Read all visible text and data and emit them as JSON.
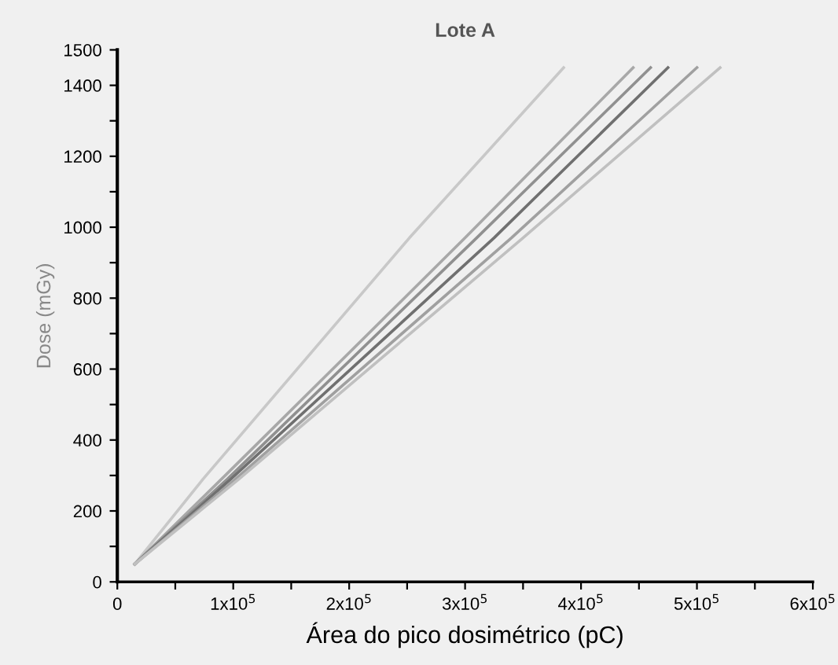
{
  "chart_data": {
    "type": "line",
    "title": "Lote A",
    "xlabel": "Área do pico dosimétrico (pC)",
    "ylabel": "Dose (mGy)",
    "xlim": [
      0,
      600000
    ],
    "ylim": [
      0,
      1500
    ],
    "xticks": [
      {
        "value": 0,
        "label": "0"
      },
      {
        "value": 50000,
        "label": null
      },
      {
        "value": 100000,
        "label": "1x10$^{5}$"
      },
      {
        "value": 150000,
        "label": null
      },
      {
        "value": 200000,
        "label": "2x10$^{5}$"
      },
      {
        "value": 250000,
        "label": null
      },
      {
        "value": 300000,
        "label": "3x10$^{5}$"
      },
      {
        "value": 350000,
        "label": null
      },
      {
        "value": 400000,
        "label": "4x10$^{5}$"
      },
      {
        "value": 450000,
        "label": null
      },
      {
        "value": 500000,
        "label": "5x10$^{5}$"
      },
      {
        "value": 550000,
        "label": null
      },
      {
        "value": 600000,
        "label": "6x10$^{5}$"
      }
    ],
    "yticks": [
      0,
      {
        "value": 100,
        "label": null
      },
      200,
      {
        "value": 300,
        "label": null
      },
      400,
      {
        "value": 500,
        "label": null
      },
      600,
      {
        "value": 700,
        "label": null
      },
      800,
      {
        "value": 900,
        "label": null
      },
      1000,
      {
        "value": 1100,
        "label": null
      },
      1200,
      {
        "value": 1300,
        "label": null
      },
      1400,
      1500
    ],
    "grid": false,
    "marker": "none",
    "line_style": "solid",
    "series": [
      {
        "color": "#c8c8c8",
        "x": [
          15000,
          74000,
          252000,
          385000
        ],
        "values": [
          50,
          290,
          970,
          1450
        ]
      },
      {
        "color": "#a8a8a8",
        "x": [
          15000,
          90000,
          300000,
          445000
        ],
        "values": [
          50,
          290,
          970,
          1450
        ]
      },
      {
        "color": "#909090",
        "x": [
          15000,
          95000,
          310000,
          460000
        ],
        "values": [
          50,
          290,
          970,
          1450
        ]
      },
      {
        "color": "#707070",
        "x": [
          15000,
          98000,
          325000,
          475000
        ],
        "values": [
          50,
          290,
          970,
          1450
        ]
      },
      {
        "color": "#a0a0a0",
        "x": [
          15000,
          102000,
          340000,
          500000
        ],
        "values": [
          50,
          290,
          970,
          1450
        ]
      },
      {
        "color": "#c0c0c0",
        "x": [
          15000,
          105000,
          350000,
          520000
        ],
        "values": [
          50,
          290,
          970,
          1450
        ]
      }
    ]
  }
}
